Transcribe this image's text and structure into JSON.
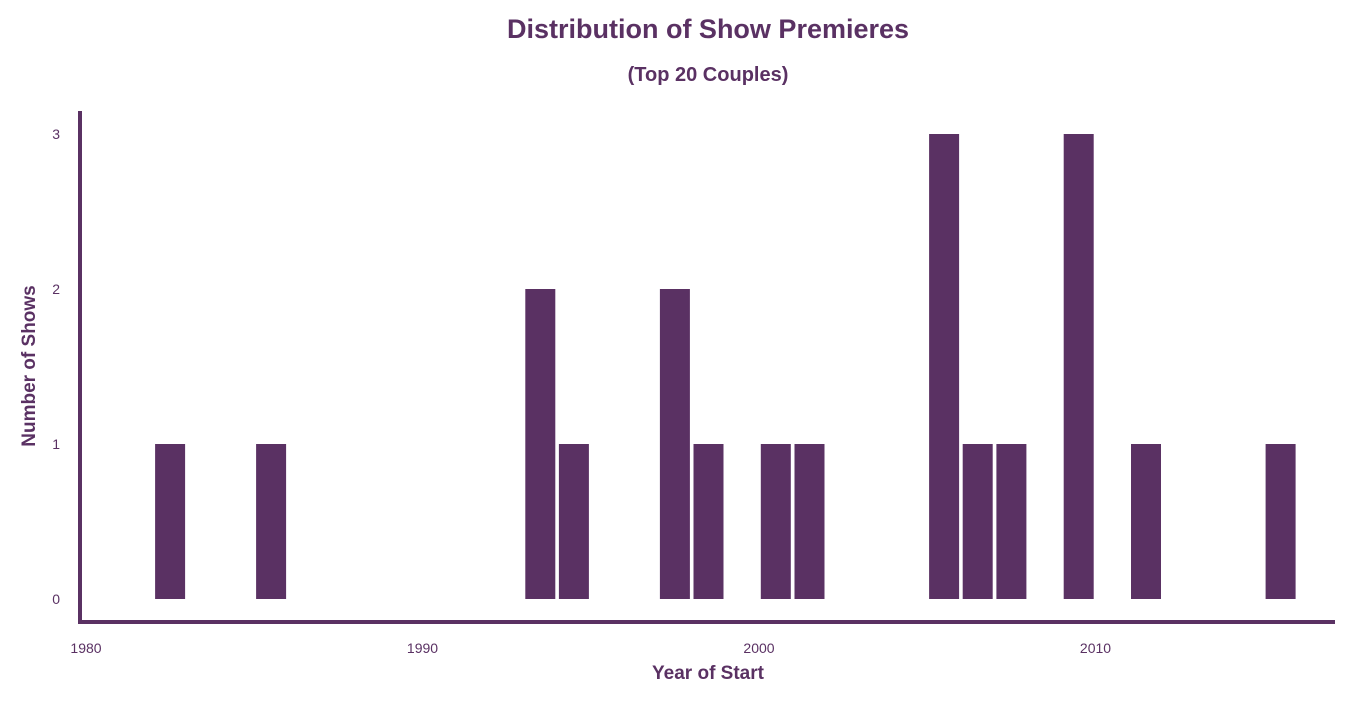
{
  "chart_data": {
    "type": "bar",
    "title": "Distribution of Show Premieres",
    "subtitle": "(Top 20 Couples)",
    "xlabel": "Year of Start",
    "ylabel": "Number of Shows",
    "x_ticks": [
      1980,
      1990,
      2000,
      2010
    ],
    "y_ticks": [
      0,
      1,
      2,
      3
    ],
    "xlim": [
      1980,
      2017
    ],
    "ylim": [
      0,
      3
    ],
    "grid": false,
    "bar_color": "#5a3163",
    "series": [
      {
        "x": [
          1982,
          1985,
          1993,
          1994,
          1997,
          1998,
          2000,
          2001,
          2005,
          2006,
          2007,
          2009,
          2011,
          2015
        ],
        "values": [
          1,
          1,
          2,
          1,
          2,
          1,
          1,
          1,
          3,
          1,
          1,
          3,
          1,
          1
        ]
      }
    ]
  }
}
